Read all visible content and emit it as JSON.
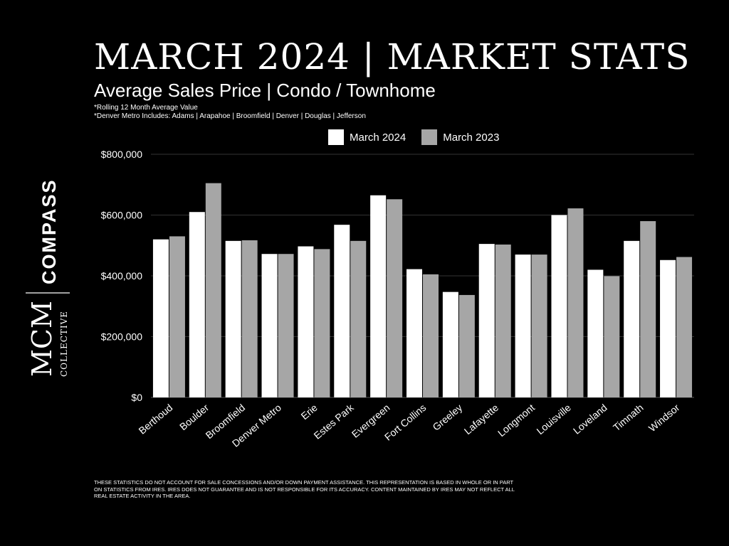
{
  "header": {
    "title": "MARCH 2024 | MARKET STATS",
    "subtitle": "Average Sales Price | Condo / Townhome",
    "note1": "*Rolling 12 Month Average Value",
    "note2": "*Denver Metro Includes: Adams | Arapahoe | Broomfield | Denver | Douglas | Jefferson"
  },
  "brand": {
    "compass": "COMPASS",
    "mcm": "MCM",
    "collective": "COLLECTIVE"
  },
  "legend": {
    "series1": "March 2024",
    "series2": "March 2023"
  },
  "colors": {
    "series1": "#ffffff",
    "series2": "#a6a6a6",
    "grid": "#333333",
    "background": "#000000"
  },
  "disclaimer": "These statistics do not account for sale concessions and/or down payment assistance. This representation is based in whole or in part on statistics from IRES. IRES does not guarantee and is not responsible for its accuracy. Content maintained by IRES may not reflect all real estate activity in the area.",
  "chart_data": {
    "type": "bar",
    "title": "Average Sales Price | Condo / Townhome",
    "categories": [
      "Berthoud",
      "Boulder",
      "Broomfield",
      "Denver Metro",
      "Erie",
      "Estes Park",
      "Evergreen",
      "Fort Collins",
      "Greeley",
      "Lafayette",
      "Longmont",
      "Louisville",
      "Loveland",
      "Timnath",
      "Windsor"
    ],
    "series": [
      {
        "name": "March 2024",
        "values": [
          520000,
          610000,
          515000,
          472000,
          497000,
          568000,
          665000,
          422000,
          347000,
          505000,
          470000,
          600000,
          420000,
          515000,
          452000
        ]
      },
      {
        "name": "March 2023",
        "values": [
          530000,
          705000,
          517000,
          472000,
          488000,
          515000,
          652000,
          405000,
          337000,
          503000,
          470000,
          622000,
          399000,
          580000,
          462000
        ]
      }
    ],
    "ylim": [
      0,
      800000
    ],
    "yticks": [
      0,
      200000,
      400000,
      600000,
      800000
    ],
    "ytick_labels": [
      "$0",
      "$200,000",
      "$400,000",
      "$600,000",
      "$800,000"
    ],
    "grid": true,
    "legend_position": "top"
  }
}
